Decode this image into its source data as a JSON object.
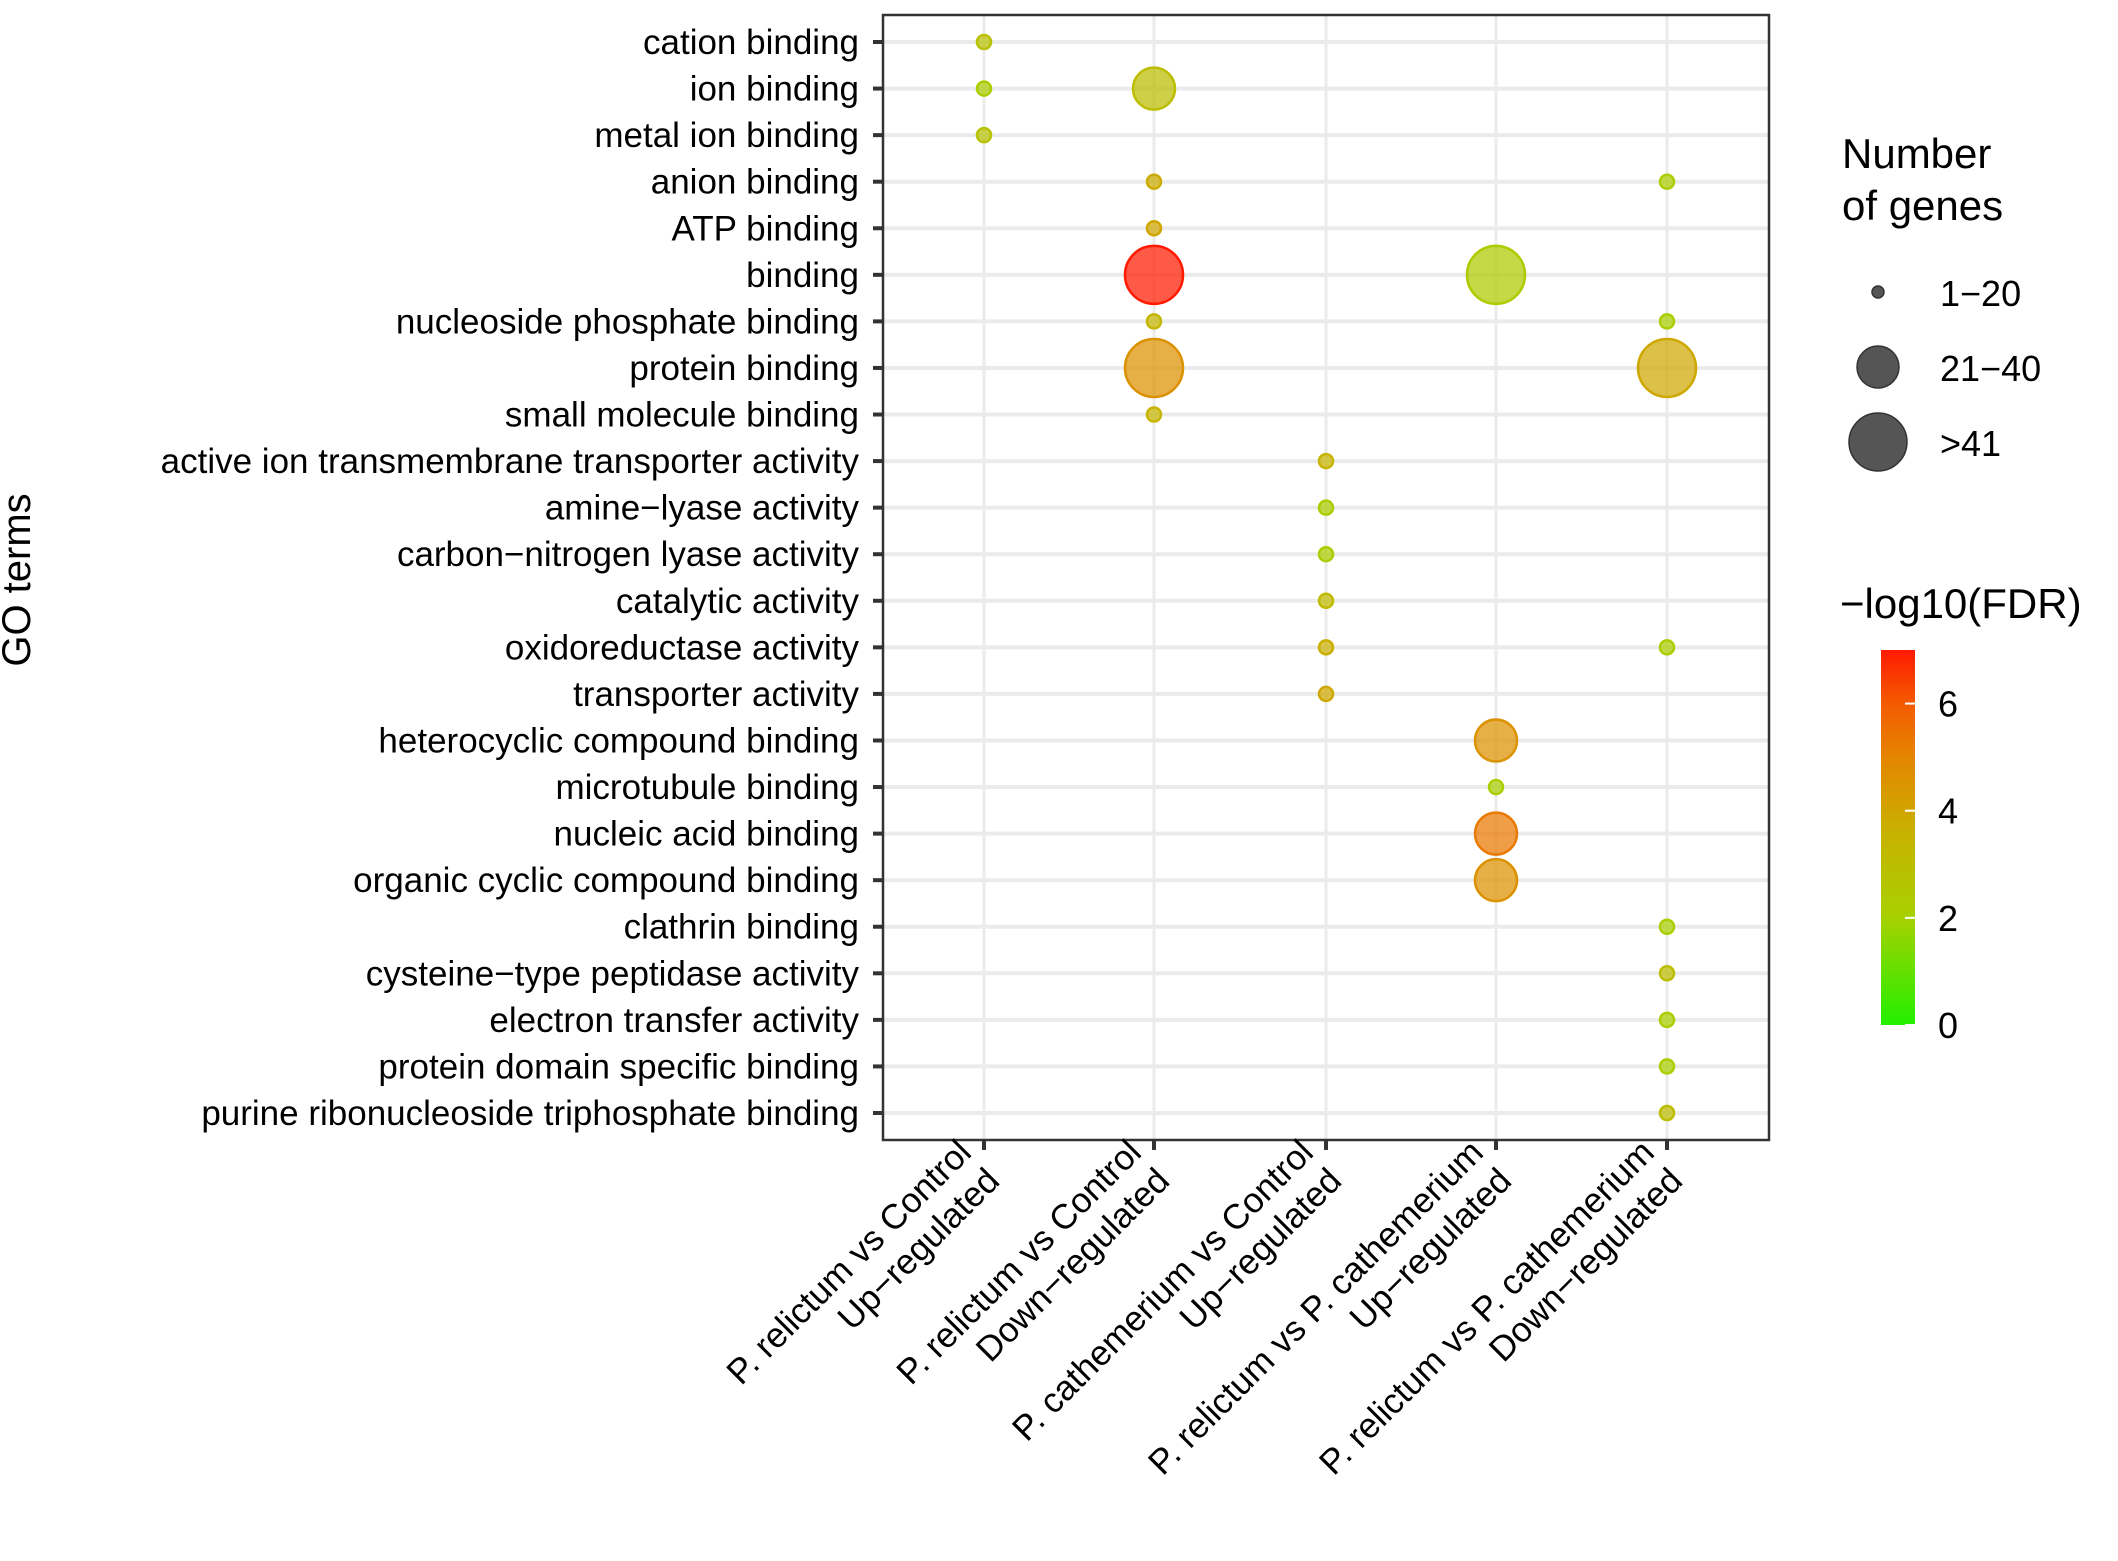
{
  "chart_data": {
    "type": "scatter",
    "subtype": "bubble",
    "title": "",
    "ylabel": "GO terms",
    "xlabel": "",
    "grid": true,
    "categories_x": [
      {
        "line1": "P. relictum vs Control",
        "line2": "Up−regulated"
      },
      {
        "line1": "P. relictum vs Control",
        "line2": "Down−regulated"
      },
      {
        "line1": "P. cathemerium vs Control",
        "line2": "Up−regulated"
      },
      {
        "line1": "P. relictum vs P. cathemerium",
        "line2": "Up−regulated"
      },
      {
        "line1": "P. relictum vs P. cathemerium",
        "line2": "Down−regulated"
      }
    ],
    "categories_y": [
      "cation binding",
      "ion binding",
      "metal ion binding",
      "anion binding",
      "ATP binding",
      "binding",
      "nucleoside phosphate binding",
      "protein binding",
      "small molecule binding",
      "active ion transmembrane transporter activity",
      "amine−lyase activity",
      "carbon−nitrogen lyase activity",
      "catalytic activity",
      "oxidoreductase activity",
      "transporter activity",
      "heterocyclic compound binding",
      "microtubule binding",
      "nucleic acid binding",
      "organic cyclic compound binding",
      "clathrin binding",
      "cysteine−type peptidase activity",
      "electron transfer activity",
      "protein domain specific binding",
      "purine ribonucleoside triphosphate binding"
    ],
    "points": [
      {
        "term": "cation binding",
        "x": 0,
        "size_class": "1−20",
        "neg_log10_fdr": 2.8
      },
      {
        "term": "ion binding",
        "x": 0,
        "size_class": "1−20",
        "neg_log10_fdr": 2.2
      },
      {
        "term": "ion binding",
        "x": 1,
        "size_class": "21−40",
        "neg_log10_fdr": 3.0
      },
      {
        "term": "metal ion binding",
        "x": 0,
        "size_class": "1−20",
        "neg_log10_fdr": 2.8
      },
      {
        "term": "anion binding",
        "x": 1,
        "size_class": "1−20",
        "neg_log10_fdr": 3.8
      },
      {
        "term": "anion binding",
        "x": 4,
        "size_class": "1−20",
        "neg_log10_fdr": 2.2
      },
      {
        "term": "ATP binding",
        "x": 1,
        "size_class": "1−20",
        "neg_log10_fdr": 4.0
      },
      {
        "term": "binding",
        "x": 1,
        "size_class": ">41",
        "neg_log10_fdr": 7.0
      },
      {
        "term": "binding",
        "x": 3,
        "size_class": ">41",
        "neg_log10_fdr": 2.3
      },
      {
        "term": "nucleoside phosphate binding",
        "x": 1,
        "size_class": "1−20",
        "neg_log10_fdr": 3.4
      },
      {
        "term": "nucleoside phosphate binding",
        "x": 4,
        "size_class": "1−20",
        "neg_log10_fdr": 2.1
      },
      {
        "term": "protein binding",
        "x": 1,
        "size_class": ">41",
        "neg_log10_fdr": 4.6
      },
      {
        "term": "protein binding",
        "x": 4,
        "size_class": ">41",
        "neg_log10_fdr": 3.9
      },
      {
        "term": "small molecule binding",
        "x": 1,
        "size_class": "1−20",
        "neg_log10_fdr": 3.5
      },
      {
        "term": "active ion transmembrane transporter activity",
        "x": 2,
        "size_class": "1−20",
        "neg_log10_fdr": 3.5
      },
      {
        "term": "amine−lyase activity",
        "x": 2,
        "size_class": "1−20",
        "neg_log10_fdr": 2.2
      },
      {
        "term": "carbon−nitrogen lyase activity",
        "x": 2,
        "size_class": "1−20",
        "neg_log10_fdr": 2.2
      },
      {
        "term": "catalytic activity",
        "x": 2,
        "size_class": "1−20",
        "neg_log10_fdr": 3.2
      },
      {
        "term": "oxidoreductase activity",
        "x": 2,
        "size_class": "1−20",
        "neg_log10_fdr": 3.7
      },
      {
        "term": "oxidoreductase activity",
        "x": 4,
        "size_class": "1−20",
        "neg_log10_fdr": 2.2
      },
      {
        "term": "transporter activity",
        "x": 2,
        "size_class": "1−20",
        "neg_log10_fdr": 3.9
      },
      {
        "term": "heterocyclic compound binding",
        "x": 3,
        "size_class": "21−40",
        "neg_log10_fdr": 4.6
      },
      {
        "term": "microtubule binding",
        "x": 3,
        "size_class": "1−20",
        "neg_log10_fdr": 2.1
      },
      {
        "term": "nucleic acid binding",
        "x": 3,
        "size_class": "21−40",
        "neg_log10_fdr": 5.3
      },
      {
        "term": "organic cyclic compound binding",
        "x": 3,
        "size_class": "21−40",
        "neg_log10_fdr": 4.6
      },
      {
        "term": "clathrin binding",
        "x": 4,
        "size_class": "1−20",
        "neg_log10_fdr": 2.1
      },
      {
        "term": "cysteine−type peptidase activity",
        "x": 4,
        "size_class": "1−20",
        "neg_log10_fdr": 3.0
      },
      {
        "term": "electron transfer activity",
        "x": 4,
        "size_class": "1−20",
        "neg_log10_fdr": 2.1
      },
      {
        "term": "protein domain specific binding",
        "x": 4,
        "size_class": "1−20",
        "neg_log10_fdr": 2.1
      },
      {
        "term": "purine ribonucleoside triphosphate binding",
        "x": 4,
        "size_class": "1−20",
        "neg_log10_fdr": 3.0
      }
    ],
    "size_legend": {
      "title_line1": "Number",
      "title_line2": "of genes",
      "entries": [
        "1−20",
        "21−40",
        ">41"
      ]
    },
    "color_legend": {
      "title": "−log10(FDR)",
      "ticks": [
        "0",
        "2",
        "4",
        "6"
      ],
      "tick_values": [
        0,
        2,
        4,
        6
      ],
      "range": [
        0,
        7
      ],
      "low_color": "#22ee00",
      "high_color": "#ff1a00"
    },
    "legend_placement": "right"
  }
}
